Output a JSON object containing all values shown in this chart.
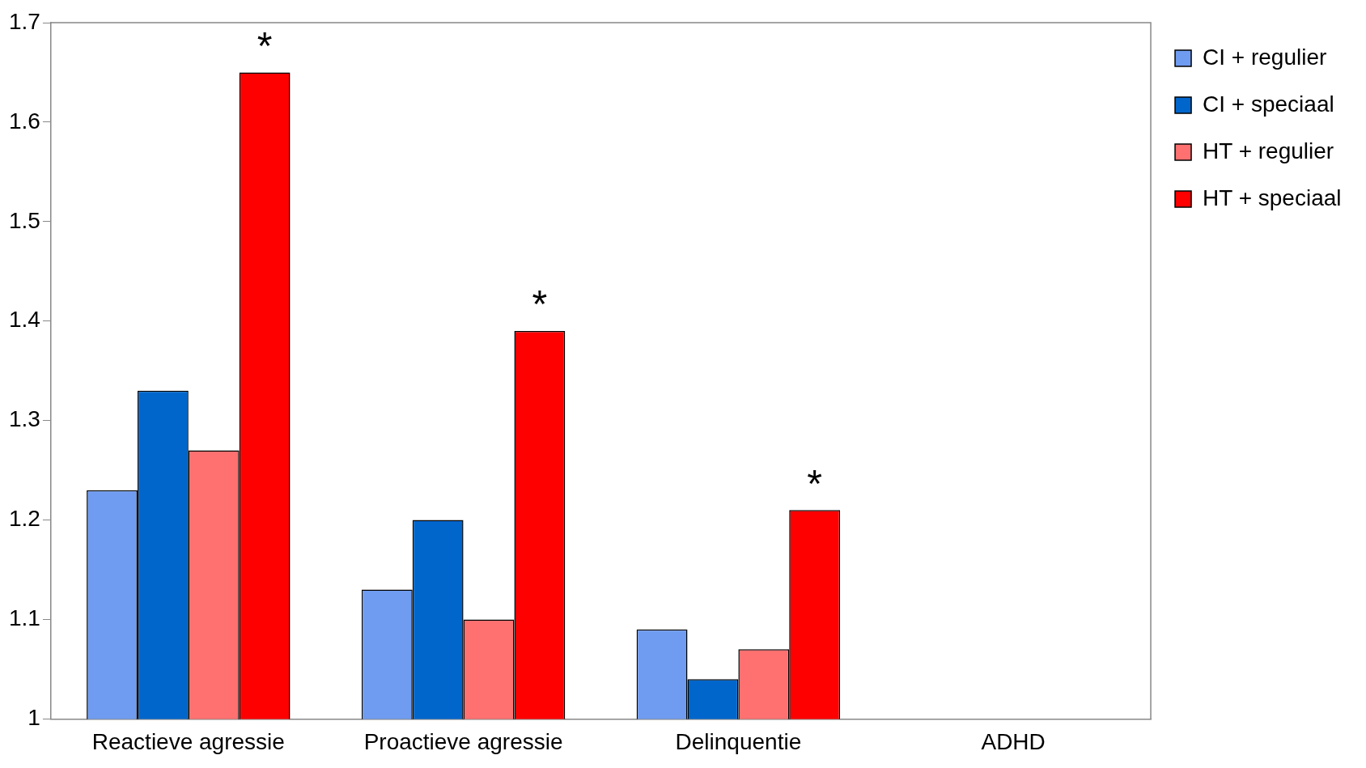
{
  "chart_data": {
    "type": "bar",
    "categories": [
      "Reactieve agressie",
      "Proactieve agressie",
      "Delinquentie",
      "ADHD"
    ],
    "series": [
      {
        "name": "CI + regulier",
        "color": "#6f9cf0",
        "values": [
          1.23,
          1.13,
          1.09,
          null
        ]
      },
      {
        "name": "CI + speciaal",
        "color": "#0066cc",
        "values": [
          1.33,
          1.2,
          1.04,
          null
        ]
      },
      {
        "name": "HT + regulier",
        "color": "#ff7070",
        "values": [
          1.27,
          1.1,
          1.07,
          null
        ]
      },
      {
        "name": "HT + speciaal",
        "color": "#ff0000",
        "values": [
          1.65,
          1.39,
          1.21,
          null
        ]
      }
    ],
    "ylim": [
      1,
      1.7
    ],
    "yticks": [
      1,
      1.1,
      1.2,
      1.3,
      1.4,
      1.5,
      1.6,
      1.7
    ],
    "grid": false,
    "legend": "top right",
    "annotations": [
      "*",
      "*",
      "*"
    ]
  }
}
